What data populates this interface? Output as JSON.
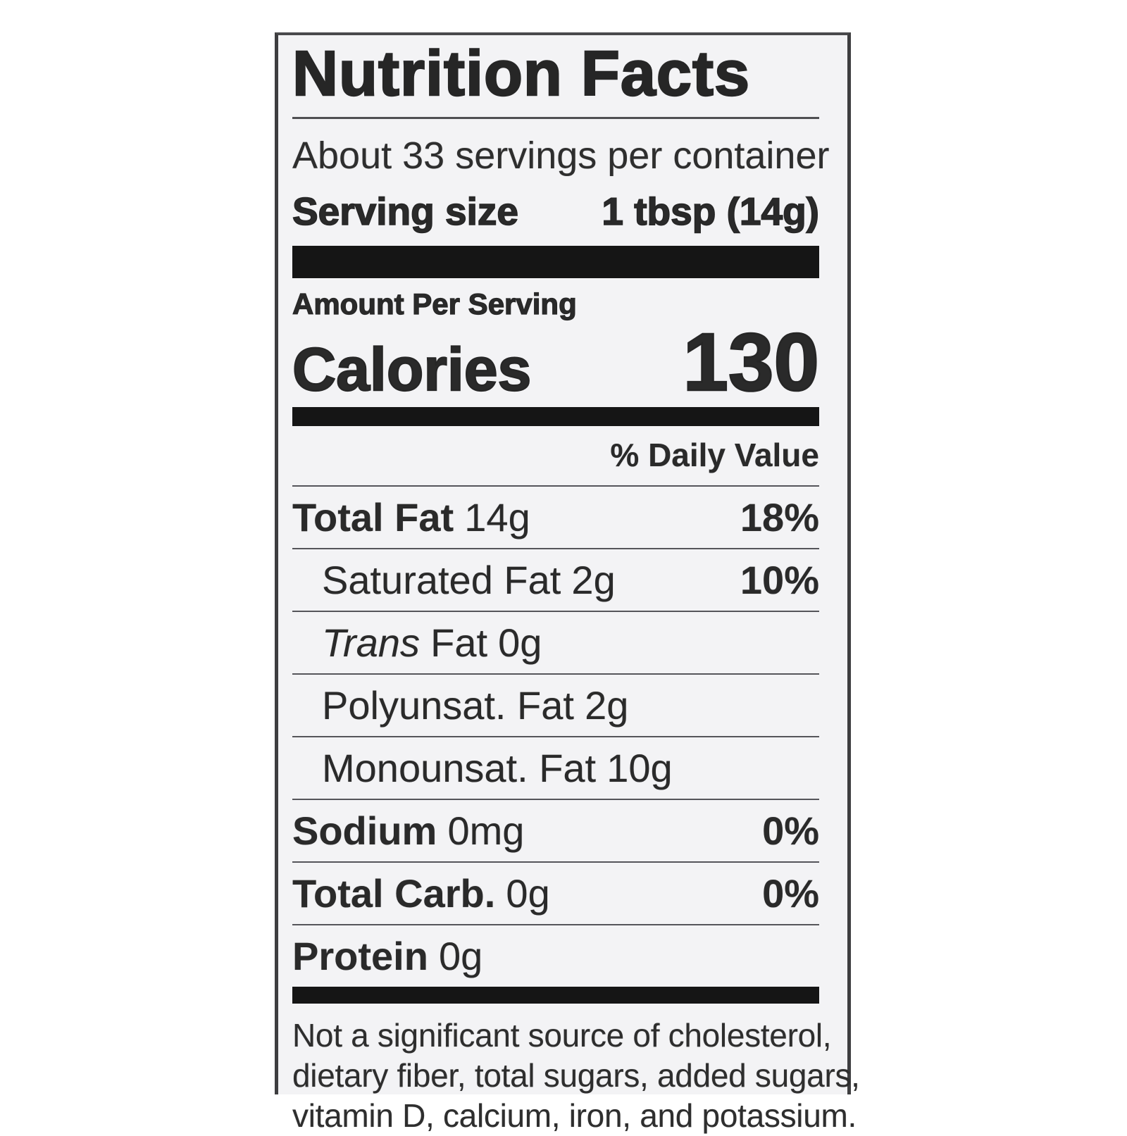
{
  "colors": {
    "ink": "#2a2a2a",
    "heavy_bar": "#151515",
    "label_background": "#f3f3f5",
    "page_background": "#ffffff"
  },
  "label": {
    "title": "Nutrition Facts",
    "servings_per_container": "About 33 servings per container",
    "serving_size": {
      "label": "Serving size",
      "value": "1 tbsp (14g)"
    },
    "amount_per_serving": "Amount Per Serving",
    "calories": {
      "label": "Calories",
      "value": "130"
    },
    "daily_value_header": "% Daily Value",
    "nutrients": [
      {
        "name": "Total Fat",
        "amount": "14g",
        "dv": "18%"
      },
      {
        "name": "Saturated Fat",
        "amount": "2g",
        "dv": "10%"
      },
      {
        "name_italic": "Trans",
        "name": "Fat",
        "amount": "0g",
        "dv": ""
      },
      {
        "name": "Polyunsat. Fat",
        "amount": "2g",
        "dv": ""
      },
      {
        "name": "Monounsat. Fat",
        "amount": "10g",
        "dv": ""
      },
      {
        "name": "Sodium",
        "amount": "0mg",
        "dv": "0%"
      },
      {
        "name": "Total Carb.",
        "amount": "0g",
        "dv": "0%"
      },
      {
        "name": "Protein",
        "amount": "0g",
        "dv": ""
      }
    ],
    "footnote_lines": [
      "Not a significant source of cholesterol,",
      "dietary fiber, total sugars, added sugars,",
      "vitamin D, calcium, iron, and potassium."
    ]
  }
}
